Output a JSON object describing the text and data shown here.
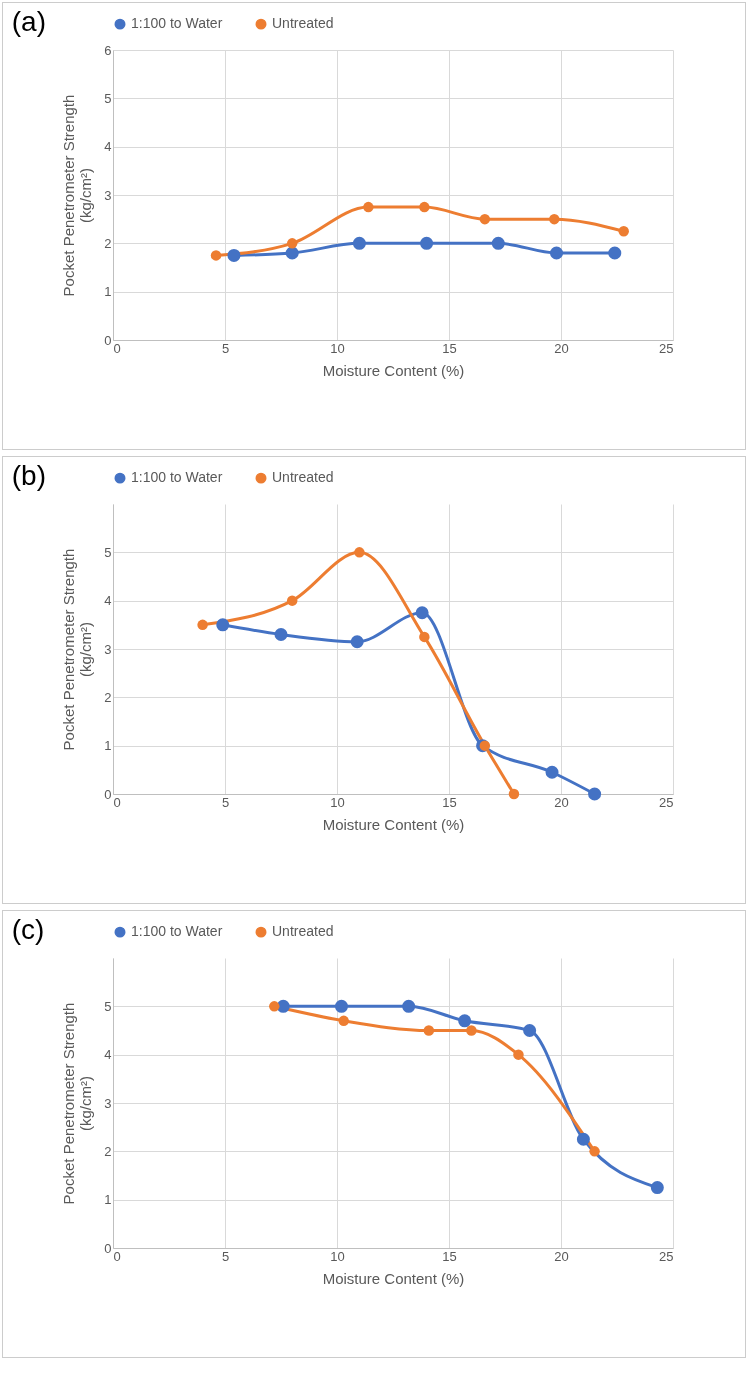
{
  "chart_data": [
    {
      "type": "line",
      "title": "(a)",
      "xlabel": "Moisture Content (%)",
      "ylabel": "Pocket Penetrometer Strength (kg/cm²)",
      "xlim": [
        0,
        25
      ],
      "xticks": [
        0,
        5,
        10,
        15,
        20,
        25
      ],
      "ylim": [
        0,
        6
      ],
      "yticks": [
        0,
        1,
        2,
        3,
        4,
        5,
        6
      ],
      "grid": true,
      "legend": "top",
      "marker": "circle",
      "series": [
        {
          "name": "1:100 to Water",
          "color": "#4472c4",
          "x": [
            5.4,
            8,
            11,
            14,
            17.2,
            19.8,
            22.4
          ],
          "values": [
            1.75,
            1.8,
            2,
            2,
            2,
            1.8,
            1.8
          ]
        },
        {
          "name": "Untreated",
          "color": "#ed7d31",
          "x": [
            4.6,
            8,
            11.4,
            13.9,
            16.6,
            19.7,
            22.8
          ],
          "values": [
            1.75,
            2,
            2.75,
            2.75,
            2.5,
            2.5,
            2.25
          ]
        }
      ]
    },
    {
      "type": "line",
      "title": "(b)",
      "xlabel": "Moisture Content (%)",
      "ylabel": "Pocket Penetrometer Strength (kg/cm²)",
      "xlim": [
        0,
        25
      ],
      "xticks": [
        0,
        5,
        10,
        15,
        20,
        25
      ],
      "ylim": [
        0,
        6
      ],
      "yticks": [
        0,
        1,
        2,
        3,
        4,
        5
      ],
      "grid": true,
      "legend": "top",
      "marker": "circle",
      "series": [
        {
          "name": "1:100 to Water",
          "color": "#4472c4",
          "x": [
            4.9,
            7.5,
            10.9,
            13.8,
            16.5,
            19.6,
            21.5
          ],
          "values": [
            3.5,
            3.3,
            3.15,
            3.75,
            1,
            0.45,
            0
          ]
        },
        {
          "name": "Untreated",
          "color": "#ed7d31",
          "x": [
            4,
            8,
            11,
            13.9,
            16.6,
            17.9
          ],
          "values": [
            3.5,
            4,
            5,
            3.25,
            1,
            0
          ]
        }
      ]
    },
    {
      "type": "line",
      "title": "(c)",
      "xlabel": "Moisture Content (%)",
      "ylabel": "Pocket Penetrometer Strength (kg/cm²)",
      "xlim": [
        0,
        25
      ],
      "xticks": [
        0,
        5,
        10,
        15,
        20,
        25
      ],
      "ylim": [
        0,
        6
      ],
      "yticks": [
        0,
        1,
        2,
        3,
        4,
        5
      ],
      "grid": true,
      "legend": "top",
      "marker": "circle",
      "series": [
        {
          "name": "1:100 to Water",
          "color": "#4472c4",
          "x": [
            7.6,
            10.2,
            13.2,
            15.7,
            18.6,
            21,
            24.3
          ],
          "values": [
            5,
            5,
            5,
            4.7,
            4.5,
            2.25,
            1.25
          ]
        },
        {
          "name": "Untreated",
          "color": "#ed7d31",
          "x": [
            7.2,
            10.3,
            14.1,
            16,
            18.1,
            21.5
          ],
          "values": [
            5,
            4.7,
            4.5,
            4.5,
            4,
            2
          ]
        }
      ]
    }
  ]
}
